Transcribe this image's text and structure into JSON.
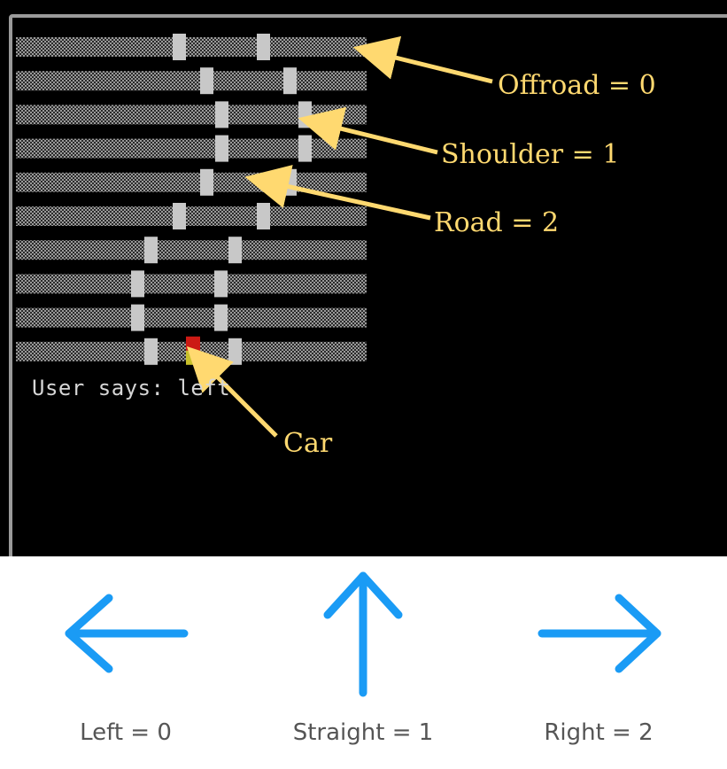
{
  "game": {
    "status_text": "User says: left",
    "track": {
      "rows": 10,
      "tile_legend": {
        "offroad": 0,
        "shoulder": 1,
        "road": 2
      },
      "car_row": 9
    },
    "annotations": {
      "offroad": "Offroad = 0",
      "shoulder": "Shoulder = 1",
      "road": "Road = 2",
      "car": "Car"
    },
    "colors": {
      "background": "#000000",
      "offroad_pattern": "#8a8a8a",
      "shoulder": "#c8c8c8",
      "annotation": "#ffd970",
      "car_top": "#cc1a14",
      "car_bottom": "#c8c02a"
    }
  },
  "controls": {
    "arrow_color": "#1a9bf5",
    "actions": [
      {
        "label": "Left = 0",
        "icon": "arrow-left-icon"
      },
      {
        "label": "Straight = 1",
        "icon": "arrow-up-icon"
      },
      {
        "label": "Right = 2",
        "icon": "arrow-right-icon"
      }
    ]
  }
}
